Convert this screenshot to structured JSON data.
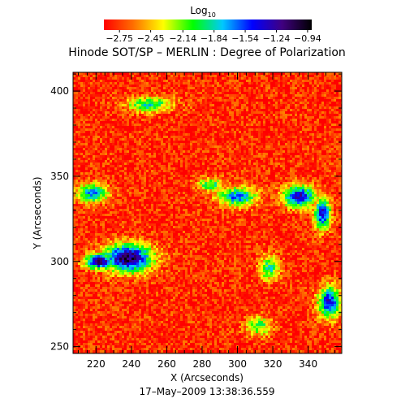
{
  "chart_data": {
    "type": "heatmap",
    "title": "Hinode SOT/SP – MERLIN : Degree of Polarization",
    "xlabel": "X (Arcseconds)",
    "ylabel": "Y (Arcseconds)",
    "timestamp": "17–May–2009 13:38:36.559",
    "xlim": [
      207,
      359
    ],
    "ylim": [
      246,
      411
    ],
    "xticks": [
      220,
      240,
      260,
      280,
      300,
      320,
      340
    ],
    "yticks": [
      250,
      300,
      350,
      400
    ],
    "colorbar": {
      "label": "Log",
      "label_subscript": "10",
      "range": [
        -2.9,
        -0.9
      ],
      "tick_values": [
        -2.75,
        -2.45,
        -2.14,
        -1.84,
        -1.54,
        -1.24,
        -0.94
      ],
      "tick_labels": [
        "−2.75",
        "−2.45",
        "−2.14",
        "−1.84",
        "−1.54",
        "−1.24",
        "−0.94"
      ],
      "colormap": [
        "#ff0000",
        "#ff7000",
        "#ffff00",
        "#00ff00",
        "#00c8ff",
        "#0000ff",
        "#400080",
        "#000000"
      ]
    },
    "background_level": -2.8,
    "features": [
      {
        "region": "strong polarization patch",
        "x_center": 238,
        "y_center": 302,
        "rx": 15,
        "ry": 9,
        "level": -1.05
      },
      {
        "region": "network patch",
        "x_center": 222,
        "y_center": 300,
        "rx": 9,
        "ry": 5,
        "level": -1.15
      },
      {
        "region": "network lane",
        "x_center": 300,
        "y_center": 338,
        "rx": 12,
        "ry": 6,
        "level": -1.6
      },
      {
        "region": "network lane",
        "x_center": 335,
        "y_center": 338,
        "rx": 10,
        "ry": 7,
        "level": -1.3
      },
      {
        "region": "network patch",
        "x_center": 348,
        "y_center": 328,
        "rx": 5,
        "ry": 10,
        "level": -1.4
      },
      {
        "region": "network patch",
        "x_center": 352,
        "y_center": 276,
        "rx": 7,
        "ry": 10,
        "level": -1.4
      },
      {
        "region": "network lane",
        "x_center": 218,
        "y_center": 340,
        "rx": 10,
        "ry": 6,
        "level": -1.7
      },
      {
        "region": "network lane",
        "x_center": 250,
        "y_center": 392,
        "rx": 14,
        "ry": 5,
        "level": -1.9
      },
      {
        "region": "network lane",
        "x_center": 285,
        "y_center": 345,
        "rx": 8,
        "ry": 4,
        "level": -1.9
      },
      {
        "region": "network lane",
        "x_center": 318,
        "y_center": 296,
        "rx": 6,
        "ry": 8,
        "level": -1.9
      },
      {
        "region": "network lane",
        "x_center": 312,
        "y_center": 262,
        "rx": 8,
        "ry": 6,
        "level": -2.0
      }
    ]
  }
}
